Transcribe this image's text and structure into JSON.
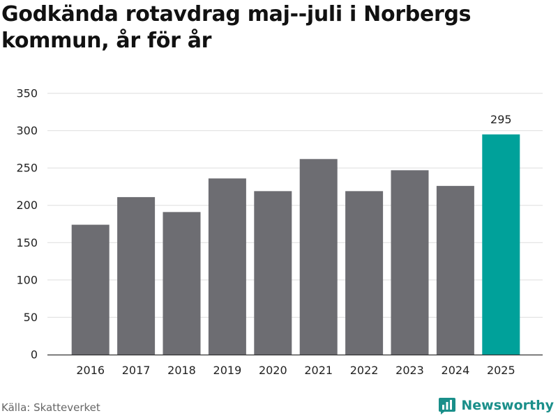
{
  "title": "Godkända rotavdrag maj--juli i Norbergs kommun, år för år",
  "source": "Källa: Skatteverket",
  "brand": {
    "name": "Newsworthy",
    "icon": "newsworthy-logo-icon",
    "color": "#1a8f8a"
  },
  "chart_data": {
    "type": "bar",
    "title": "Godkända rotavdrag maj--juli i Norbergs kommun, år för år",
    "xlabel": "",
    "ylabel": "",
    "categories": [
      "2016",
      "2017",
      "2018",
      "2019",
      "2020",
      "2021",
      "2022",
      "2023",
      "2024",
      "2025"
    ],
    "values": [
      174,
      211,
      191,
      236,
      219,
      262,
      219,
      247,
      226,
      295
    ],
    "ylim": [
      0,
      350
    ],
    "yticks": [
      0,
      50,
      100,
      150,
      200,
      250,
      300,
      350
    ],
    "grid": true,
    "bar_color": "#6d6d72",
    "highlight_color": "#00a19a",
    "highlight_index": 9,
    "data_labels": [
      {
        "index": 9,
        "text": "295"
      }
    ]
  }
}
